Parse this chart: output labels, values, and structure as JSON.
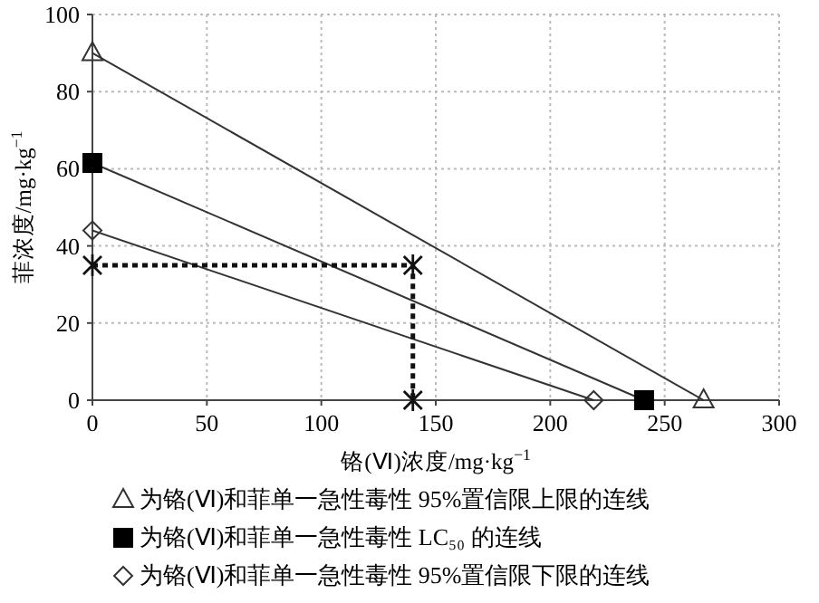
{
  "chart_data": {
    "type": "line",
    "xlabel": "铬(Ⅵ)浓度/mg·kg$^{−1}$",
    "ylabel": "菲浓度/mg·kg$^{−1}$",
    "xlim": [
      0,
      300
    ],
    "xticks": [
      0,
      50,
      100,
      150,
      200,
      250,
      300
    ],
    "ylim": [
      0,
      100
    ],
    "yticks": [
      0,
      20,
      40,
      60,
      80,
      100
    ],
    "grid": true,
    "legend": "bottom",
    "series": [
      {
        "name": "为铬(Ⅵ)和菲单一急性毒性 95%置信限上限的连线",
        "color": "#333333",
        "marker": "triangle",
        "x": [
          0,
          267
        ],
        "values": [
          90,
          0
        ]
      },
      {
        "name": "为铬(Ⅵ)和菲单一急性毒性 LC₅₀ 的连线",
        "color": "#333333",
        "marker": "square",
        "x": [
          0,
          241
        ],
        "values": [
          61.5,
          0
        ]
      },
      {
        "name": "为铬(Ⅵ)和菲单一急性毒性 95%置信限下限的连线",
        "color": "#333333",
        "marker": "diamond",
        "x": [
          0,
          219
        ],
        "values": [
          44,
          0
        ]
      },
      {
        "color": "#111111",
        "marker": "cross",
        "line_style": "dotted",
        "x": [
          0,
          140,
          140
        ],
        "values": [
          35,
          35,
          0
        ]
      }
    ]
  }
}
